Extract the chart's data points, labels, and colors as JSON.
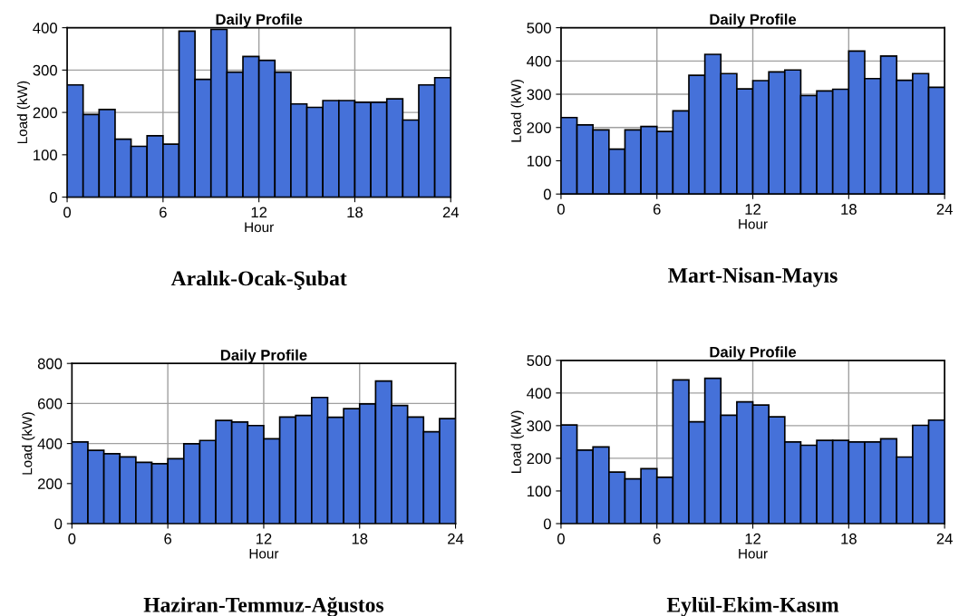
{
  "chart_data": [
    {
      "type": "histogram",
      "title": "Daily Profile",
      "xlabel": "Hour",
      "ylabel": "Load (kW)",
      "annotations": [
        "Aralık-Ocak-Şubat"
      ],
      "color": "#4571d9",
      "grid": true,
      "xlim": [
        0,
        24
      ],
      "xticks": [
        0,
        6,
        12,
        18,
        24
      ],
      "ylim": [
        0,
        400
      ],
      "yticks": [
        0,
        100,
        200,
        300,
        400
      ],
      "bins": [
        0,
        1,
        2,
        3,
        4,
        5,
        6,
        7,
        8,
        9,
        10,
        11,
        12,
        13,
        14,
        15,
        16,
        17,
        18,
        19,
        20,
        21,
        22,
        23,
        24
      ],
      "values": [
        265,
        195,
        207,
        137,
        120,
        145,
        125,
        392,
        278,
        396,
        295,
        332,
        323,
        295,
        220,
        212,
        228,
        228,
        224,
        224,
        232,
        182,
        265,
        282
      ]
    },
    {
      "type": "histogram",
      "title": "Daily Profile",
      "xlabel": "Hour",
      "ylabel": "Load (kW)",
      "annotations": [
        "Mart-Nisan-Mayıs"
      ],
      "color": "#4571d9",
      "grid": true,
      "xlim": [
        0,
        24
      ],
      "xticks": [
        0,
        6,
        12,
        18,
        24
      ],
      "ylim": [
        0,
        500
      ],
      "yticks": [
        0,
        100,
        200,
        300,
        400,
        500
      ],
      "bins": [
        0,
        1,
        2,
        3,
        4,
        5,
        6,
        7,
        8,
        9,
        10,
        11,
        12,
        13,
        14,
        15,
        16,
        17,
        18,
        19,
        20,
        21,
        22,
        23,
        24
      ],
      "values": [
        230,
        208,
        193,
        135,
        193,
        203,
        188,
        250,
        357,
        420,
        362,
        316,
        341,
        367,
        373,
        296,
        310,
        315,
        430,
        347,
        415,
        342,
        362,
        321
      ]
    },
    {
      "type": "histogram",
      "title": "Daily Profile",
      "xlabel": "Hour",
      "ylabel": "Load (kW)",
      "annotations": [
        "Haziran-Temmuz-Ağustos"
      ],
      "color": "#4571d9",
      "grid": true,
      "xlim": [
        0,
        24
      ],
      "xticks": [
        0,
        6,
        12,
        18,
        24
      ],
      "ylim": [
        0,
        800
      ],
      "yticks": [
        0,
        200,
        400,
        600,
        800
      ],
      "bins": [
        0,
        1,
        2,
        3,
        4,
        5,
        6,
        7,
        8,
        9,
        10,
        11,
        12,
        13,
        14,
        15,
        16,
        17,
        18,
        19,
        20,
        21,
        22,
        23,
        24
      ],
      "values": [
        408,
        366,
        349,
        333,
        306,
        299,
        324,
        399,
        415,
        515,
        507,
        490,
        424,
        532,
        540,
        630,
        531,
        574,
        598,
        712,
        590,
        532,
        459,
        524
      ]
    },
    {
      "type": "histogram",
      "title": "Daily Profile",
      "xlabel": "Hour",
      "ylabel": "Load (kW)",
      "annotations": [
        "Eylül-Ekim-Kasım"
      ],
      "color": "#4571d9",
      "grid": true,
      "xlim": [
        0,
        24
      ],
      "xticks": [
        0,
        6,
        12,
        18,
        24
      ],
      "ylim": [
        0,
        500
      ],
      "yticks": [
        0,
        100,
        200,
        300,
        400,
        500
      ],
      "bins": [
        0,
        1,
        2,
        3,
        4,
        5,
        6,
        7,
        8,
        9,
        10,
        11,
        12,
        13,
        14,
        15,
        16,
        17,
        18,
        19,
        20,
        21,
        22,
        23,
        24
      ],
      "values": [
        302,
        225,
        235,
        158,
        137,
        168,
        142,
        440,
        312,
        445,
        332,
        373,
        363,
        327,
        250,
        240,
        255,
        255,
        250,
        250,
        260,
        204,
        301,
        317
      ]
    }
  ]
}
